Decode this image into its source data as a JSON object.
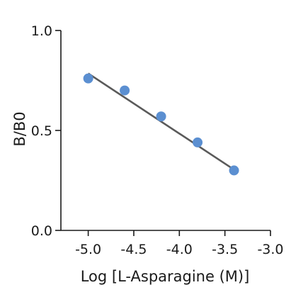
{
  "chart_data": {
    "type": "scatter",
    "xlabel": "Log [L-Asparagine (M)]",
    "ylabel": "B/B0",
    "xlim": [
      -5.3,
      -3.0
    ],
    "ylim": [
      0.0,
      1.0
    ],
    "x_ticks": [
      -5.0,
      -4.5,
      -4.0,
      -3.5,
      -3.0
    ],
    "x_tick_labels": [
      "-5.0",
      "-4.5",
      "-4.0",
      "-3.5",
      "-3.0"
    ],
    "y_ticks": [
      0.0,
      0.5,
      1.0
    ],
    "y_tick_labels": [
      "0.0",
      "0.5",
      "1.0"
    ],
    "grid": false,
    "series": [
      {
        "x": [
          -5.0,
          -4.6,
          -4.2,
          -3.8,
          -3.4
        ],
        "y": [
          0.76,
          0.7,
          0.57,
          0.44,
          0.3
        ],
        "marker_color": "#5b8fd1"
      }
    ],
    "fit_line": {
      "x": [
        -5.0,
        -3.42
      ],
      "y": [
        0.785,
        0.31
      ],
      "color": "#5a5a5a"
    }
  }
}
